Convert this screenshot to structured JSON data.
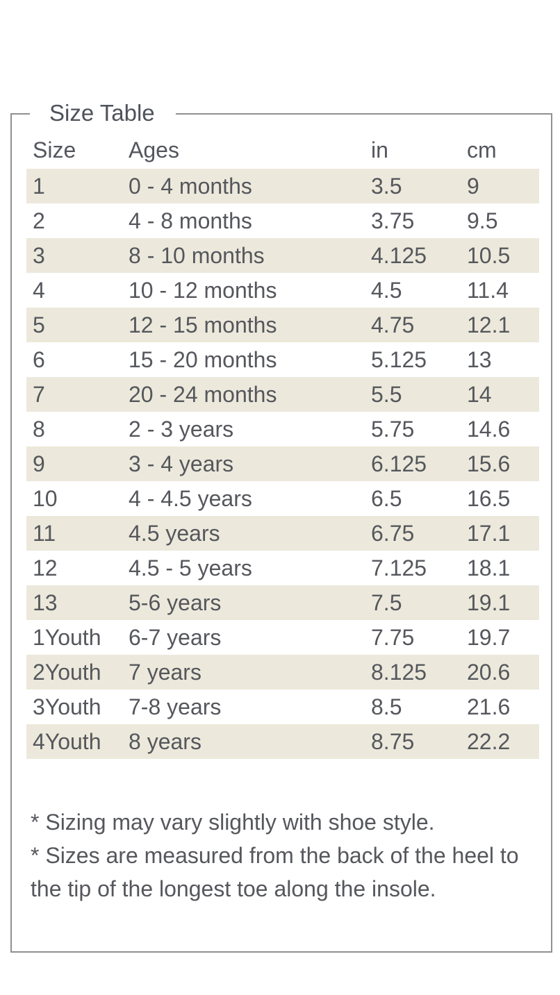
{
  "panel": {
    "legend": "Size Table"
  },
  "table": {
    "columns": {
      "size": "Size",
      "ages": "Ages",
      "in": "in",
      "cm": "cm"
    },
    "rows": [
      {
        "size": "1",
        "ages": "0 - 4 months",
        "in": "3.5",
        "cm": "9"
      },
      {
        "size": "2",
        "ages": "4 - 8 months",
        "in": "3.75",
        "cm": "9.5"
      },
      {
        "size": "3",
        "ages": "8 - 10 months",
        "in": "4.125",
        "cm": "10.5"
      },
      {
        "size": "4",
        "ages": "10 - 12 months",
        "in": "4.5",
        "cm": "11.4"
      },
      {
        "size": "5",
        "ages": "12 - 15 months",
        "in": "4.75",
        "cm": "12.1"
      },
      {
        "size": "6",
        "ages": "15 - 20 months",
        "in": "5.125",
        "cm": "13"
      },
      {
        "size": "7",
        "ages": "20 - 24 months",
        "in": "5.5",
        "cm": "14"
      },
      {
        "size": "8",
        "ages": "2 - 3 years",
        "in": "5.75",
        "cm": "14.6"
      },
      {
        "size": "9",
        "ages": "3 - 4 years",
        "in": "6.125",
        "cm": "15.6"
      },
      {
        "size": "10",
        "ages": "4 - 4.5 years",
        "in": "6.5",
        "cm": "16.5"
      },
      {
        "size": "11",
        "ages": "4.5 years",
        "in": "6.75",
        "cm": "17.1"
      },
      {
        "size": "12",
        "ages": "4.5 - 5 years",
        "in": "7.125",
        "cm": "18.1"
      },
      {
        "size": "13",
        "ages": "5-6 years",
        "in": "7.5",
        "cm": "19.1"
      },
      {
        "size": "1Youth",
        "ages": "6-7 years",
        "in": "7.75",
        "cm": "19.7"
      },
      {
        "size": "2Youth",
        "ages": "7 years",
        "in": "8.125",
        "cm": "20.6"
      },
      {
        "size": "3Youth",
        "ages": "7-8 years",
        "in": "8.5",
        "cm": "21.6"
      },
      {
        "size": "4Youth",
        "ages": "8 years",
        "in": "8.75",
        "cm": "22.2"
      }
    ]
  },
  "footnotes": {
    "note1": "* Sizing may vary slightly with shoe style.",
    "note2": "* Sizes are measured from the back of the heel to the tip of the longest toe along the insole."
  },
  "colors": {
    "stripe": "#ece9dc",
    "border": "#8f9092",
    "text": "#55575c"
  }
}
